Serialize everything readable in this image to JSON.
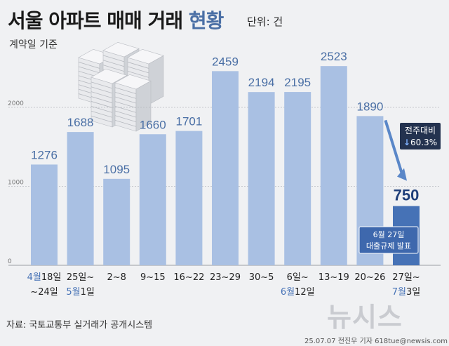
{
  "header": {
    "title_main": "서울 아파트 매매 거래",
    "title_sub": "현황",
    "unit": "단위: 건",
    "basis": "계약일 기준"
  },
  "footer": {
    "source": "자료: 국토교통부 실거래가 공개시스템",
    "credit": "25.07.07 전진우 기자 618tue@newsis.com",
    "logo": "뉴시스"
  },
  "chart_data": {
    "type": "bar",
    "categories": [
      {
        "line1": "4월18일",
        "line1_month": "4월",
        "line1_rest": "18일",
        "line2": "~24일",
        "line2_month": "",
        "line2_rest": "~24일"
      },
      {
        "line1": "25일~",
        "line1_month": "",
        "line1_rest": "25일~",
        "line2": "5월1일",
        "line2_month": "5월",
        "line2_rest": "1일"
      },
      {
        "line1": "2~8",
        "line1_month": "",
        "line1_rest": "2~8",
        "line2": "",
        "line2_month": "",
        "line2_rest": ""
      },
      {
        "line1": "9~15",
        "line1_month": "",
        "line1_rest": "9~15",
        "line2": "",
        "line2_month": "",
        "line2_rest": ""
      },
      {
        "line1": "16~22",
        "line1_month": "",
        "line1_rest": "16~22",
        "line2": "",
        "line2_month": "",
        "line2_rest": ""
      },
      {
        "line1": "23~29",
        "line1_month": "",
        "line1_rest": "23~29",
        "line2": "",
        "line2_month": "",
        "line2_rest": ""
      },
      {
        "line1": "30~5",
        "line1_month": "",
        "line1_rest": "30~5",
        "line2": "",
        "line2_month": "",
        "line2_rest": ""
      },
      {
        "line1": "6일~",
        "line1_month": "",
        "line1_rest": "6일~",
        "line2": "6월12일",
        "line2_month": "6월",
        "line2_rest": "12일"
      },
      {
        "line1": "13~19",
        "line1_month": "",
        "line1_rest": "13~19",
        "line2": "",
        "line2_month": "",
        "line2_rest": ""
      },
      {
        "line1": "20~26",
        "line1_month": "",
        "line1_rest": "20~26",
        "line2": "",
        "line2_month": "",
        "line2_rest": ""
      },
      {
        "line1": "27일~",
        "line1_month": "",
        "line1_rest": "27일~",
        "line2": "7월3일",
        "line2_month": "7월",
        "line2_rest": "3일"
      }
    ],
    "values": [
      1276,
      1688,
      1095,
      1660,
      1701,
      2459,
      2194,
      2195,
      2523,
      1890,
      750
    ],
    "value_labels": [
      "1276",
      "1688",
      "1095",
      "1660",
      "1701",
      "2459",
      "2194",
      "2195",
      "2523",
      "1890",
      "750"
    ],
    "y_ticks": [
      0,
      1000,
      2000
    ],
    "y_tick_labels": [
      "0",
      "1000",
      "2000"
    ],
    "ylim": [
      0,
      2700
    ],
    "grid": true,
    "colors": {
      "bar": "#a9c0e3",
      "highlight_bar": "#4672b6",
      "value_text": "#4a6fa5",
      "highlight_value_text": "#1f3f7a",
      "month_text": "#4672b6",
      "callout_bg": "#23324f",
      "note_bg": "#3e68ad",
      "arrow": "#5a87c8"
    },
    "highlight_index": 10,
    "annotations": {
      "change_label": "전주대비",
      "change_arrow": "↓",
      "change_value": "60.3%",
      "note_line1": "6월 27일",
      "note_line2": "대출규제 발표"
    }
  }
}
